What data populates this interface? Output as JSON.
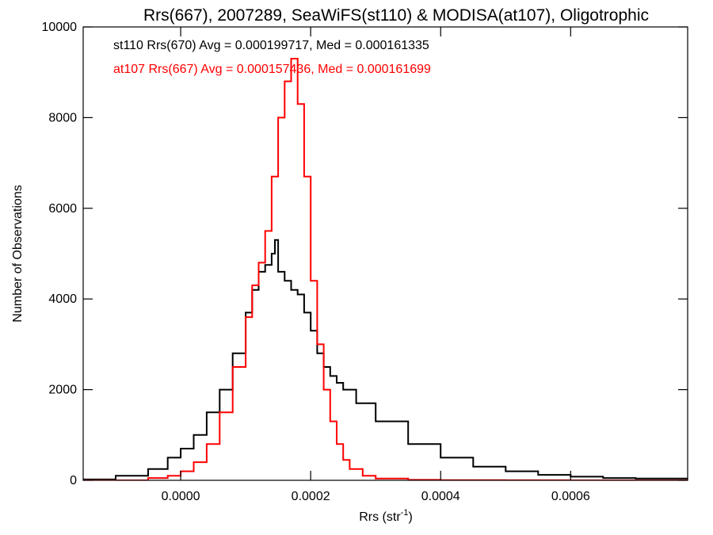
{
  "chart_data": {
    "type": "line",
    "title": "Rrs(667), 2007289, SeaWiFS(st110) & MODISA(at107), Oligotrophic",
    "xlabel": "Rrs (str",
    "xlabel_sup": "-1",
    "xlabel_end": ")",
    "ylabel": "Number of Observations",
    "xlim": [
      -0.00015,
      0.00078
    ],
    "ylim": [
      0,
      10000
    ],
    "x_ticks": [
      0.0,
      0.0002,
      0.0004,
      0.0006
    ],
    "x_tick_labels": [
      "0.0000",
      "0.0002",
      "0.0004",
      "0.0006"
    ],
    "y_ticks": [
      0,
      2000,
      4000,
      6000,
      8000,
      10000
    ],
    "y_tick_labels": [
      "0",
      "2000",
      "4000",
      "6000",
      "8000",
      "10000"
    ],
    "grid": false,
    "series": [
      {
        "name": "st110 Rrs(670) Avg = 0.000199717, Med = 0.000161335",
        "color": "#000000",
        "x": [
          -0.00015,
          -0.0001,
          -5e-05,
          -2e-05,
          0.0,
          2e-05,
          4e-05,
          6e-05,
          8e-05,
          0.0001,
          0.00011,
          0.00012,
          0.00013,
          0.00014,
          0.000145,
          0.00015,
          0.00016,
          0.00017,
          0.00018,
          0.00019,
          0.0002,
          0.00021,
          0.00022,
          0.00023,
          0.00024,
          0.00025,
          0.00027,
          0.0003,
          0.00035,
          0.0004,
          0.00045,
          0.0005,
          0.00055,
          0.0006,
          0.00065,
          0.0007,
          0.00078
        ],
        "y": [
          20,
          100,
          250,
          500,
          700,
          1000,
          1500,
          2000,
          2800,
          3700,
          4200,
          4600,
          4750,
          5000,
          5300,
          4600,
          4400,
          4200,
          4100,
          3700,
          3300,
          2800,
          2500,
          2300,
          2150,
          2000,
          1700,
          1300,
          800,
          500,
          300,
          200,
          120,
          80,
          50,
          40,
          20
        ]
      },
      {
        "name": "at107 Rrs(667) Avg = 0.000157436, Med = 0.000161699",
        "color": "#ff0000",
        "x": [
          -0.00015,
          -8e-05,
          -5e-05,
          -2e-05,
          0.0,
          2e-05,
          4e-05,
          6e-05,
          8e-05,
          0.0001,
          0.00011,
          0.00012,
          0.00013,
          0.00014,
          0.00015,
          0.00016,
          0.00017,
          0.00018,
          0.00019,
          0.0002,
          0.00021,
          0.00022,
          0.00023,
          0.00024,
          0.00025,
          0.00026,
          0.00028,
          0.0003,
          0.00035,
          0.0004,
          0.0005,
          0.0006,
          0.00078
        ],
        "y": [
          0,
          0,
          50,
          100,
          200,
          400,
          800,
          1500,
          2500,
          3600,
          4300,
          4800,
          5500,
          6700,
          8000,
          8800,
          9300,
          8300,
          6700,
          4400,
          3000,
          2000,
          1300,
          800,
          450,
          250,
          100,
          40,
          10,
          5,
          2,
          0,
          0
        ]
      }
    ]
  }
}
